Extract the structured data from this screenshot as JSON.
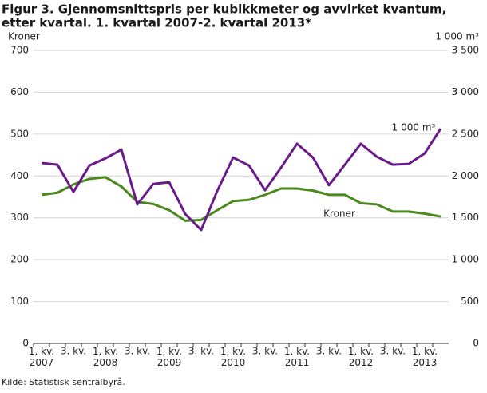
{
  "chart_data": {
    "type": "line",
    "title": [
      "Figur 3. Gjennomsnittspris per kubikkmeter og avvirket kvantum,",
      "etter kvartal. 1. kvartal 2007-2. kvartal 2013*"
    ],
    "ylabel": "Kroner",
    "y2label": "1 000 m³",
    "source": "Kilde: Statistisk sentralbyrå.",
    "categories": [
      "1. kv. 2007",
      null,
      "3. kv.",
      null,
      "1. kv. 2008",
      null,
      "3. kv.",
      null,
      "1. kv. 2009",
      null,
      "3. kv.",
      null,
      "1. kv. 2010",
      null,
      "3. kv.",
      null,
      "1. kv. 2011",
      null,
      "3. kv.",
      null,
      "1. kv. 2012",
      null,
      "3. kv.",
      null,
      "1. kv. 2013",
      null
    ],
    "series": [
      {
        "name": "Kroner",
        "color": "#4a8a1c",
        "axis": "y",
        "values": [
          355,
          360,
          380,
          393,
          397,
          375,
          338,
          333,
          318,
          293,
          295,
          318,
          340,
          343,
          355,
          370,
          370,
          365,
          355,
          355,
          335,
          332,
          315,
          315,
          310,
          303
        ]
      },
      {
        "name": "1 000 m³",
        "color": "#6a1b8a",
        "axis": "y2",
        "values": [
          2155,
          2135,
          1810,
          2125,
          2210,
          2315,
          1660,
          1905,
          1925,
          1545,
          1355,
          1820,
          2220,
          2125,
          1830,
          2100,
          2385,
          2220,
          1890,
          2135,
          2385,
          2230,
          2135,
          2145,
          2270,
          2565
        ]
      }
    ],
    "ylim": [
      0,
      700
    ],
    "yticks": [
      0,
      100,
      200,
      300,
      400,
      500,
      600,
      700
    ],
    "y2lim": [
      0,
      3500
    ],
    "y2ticks": [
      0,
      500,
      {
        "value": 1000,
        "label": "1 000"
      },
      {
        "value": 1500,
        "label": "1 500"
      },
      {
        "value": 2000,
        "label": "2 000"
      },
      {
        "value": 2500,
        "label": "2 500"
      },
      {
        "value": 3000,
        "label": "3 000"
      },
      {
        "value": 3500,
        "label": "3 500"
      }
    ],
    "grid": true
  }
}
